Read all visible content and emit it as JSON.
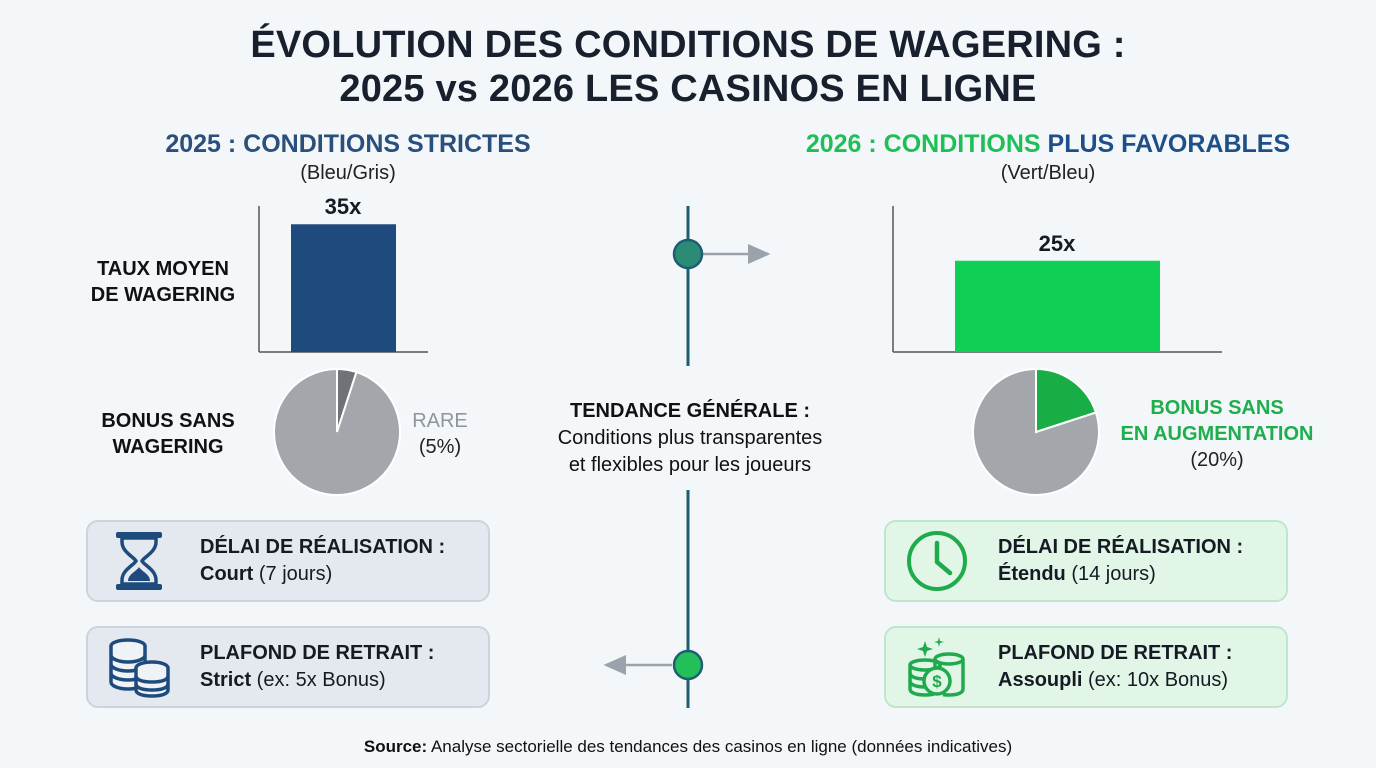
{
  "title": {
    "line1": "ÉVOLUTION DES CONDITIONS DE WAGERING :",
    "line2": "2025 vs 2026 LES CASINOS EN LIGNE"
  },
  "left": {
    "heading": "2025 : CONDITIONS STRICTES",
    "subheading": "(Bleu/Gris)",
    "bar_value_label": "35x",
    "pie_label_word": "RARE",
    "pie_label_pct": "(5%)",
    "card1_title": "DÉLAI DE RÉALISATION :",
    "card1_bold": "Court",
    "card1_rest": " (7 jours)",
    "card2_title": "PLAFOND DE RETRAIT :",
    "card2_bold": "Strict",
    "card2_rest": " (ex: 5x Bonus)"
  },
  "right": {
    "heading_part1": "2026 : CONDITIONS ",
    "heading_part2": "PLUS FAVORABLES",
    "subheading": "(Vert/Bleu)",
    "bar_value_label": "25x",
    "pie_label_line1": "BONUS SANS",
    "pie_label_line2": "EN AUGMENTATION",
    "pie_label_pct": "(20%)",
    "card1_title": "DÉLAI DE RÉALISATION :",
    "card1_bold": "Étendu",
    "card1_rest": " (14 jours)",
    "card2_title": "PLAFOND DE RETRAIT :",
    "card2_bold": "Assoupli",
    "card2_rest": " (ex: 10x Bonus)"
  },
  "row_labels": {
    "wagering_line1": "TAUX MOYEN",
    "wagering_line2": "DE WAGERING",
    "bonus_line1": "BONUS SANS",
    "bonus_line2": "WAGERING"
  },
  "center": {
    "heading": "TENDANCE GÉNÉRALE :",
    "line1": "Conditions plus transparentes",
    "line2": "et flexibles pour les joueurs"
  },
  "source": {
    "label": "Source:",
    "text": " Analyse sectorielle des tendances des casinos en ligne (données indicatives)"
  },
  "colors": {
    "blue_bar": "#1f4a7d",
    "green_bar": "#0fcf55",
    "pie_gray": "#a3a7ab",
    "pie_dark_gray": "#6f7378",
    "pie_green": "#18ad45",
    "timeline": "#1d5e73",
    "dot_top": "#2a8c74",
    "dot_bottom": "#23c05a"
  },
  "chart_data": [
    {
      "type": "bar",
      "categories": [
        "2025"
      ],
      "values": [
        35
      ],
      "data_labels": [
        "35x"
      ],
      "ylim": [
        0,
        40
      ]
    },
    {
      "type": "bar",
      "categories": [
        "2026"
      ],
      "values": [
        25
      ],
      "data_labels": [
        "25x"
      ],
      "ylim": [
        0,
        40
      ]
    },
    {
      "type": "pie",
      "values": [
        5,
        95
      ],
      "data_labels": [
        "RARE (5%)"
      ]
    },
    {
      "type": "pie",
      "values": [
        20,
        80
      ],
      "data_labels": [
        "BONUS SANS EN AUGMENTATION (20%)"
      ]
    }
  ]
}
